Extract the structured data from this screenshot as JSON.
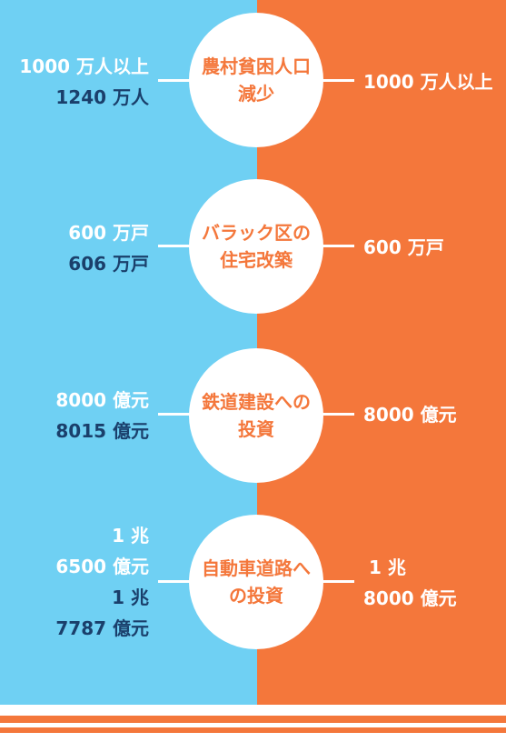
{
  "rows": [
    {
      "title": "農村貧困人口\n減少",
      "left_target": [
        "1000 万人以上"
      ],
      "left_actual": [
        "1240 万人"
      ],
      "right_target": [
        "1000 万人以上"
      ]
    },
    {
      "title": "バラック区の\n住宅改築",
      "left_target": [
        "600 万戸"
      ],
      "left_actual": [
        "606 万戸"
      ],
      "right_target": [
        "600 万戸"
      ]
    },
    {
      "title": "鉄道建設への\n投資",
      "left_target": [
        "8000 億元"
      ],
      "left_actual": [
        "8015 億元"
      ],
      "right_target": [
        "8000 億元"
      ]
    },
    {
      "title": "自動車道路へ\nの投資",
      "left_target": [
        "1 兆",
        "6500 億元"
      ],
      "left_actual": [
        "1 兆",
        "7787 億元"
      ],
      "right_target": [
        "1 兆",
        "8000 億元"
      ]
    }
  ],
  "colors": {
    "left_panel": "#6fd0f3",
    "right_panel": "#f4773b",
    "actual_text": "#1a3f6b",
    "circle": "#ffffff"
  }
}
